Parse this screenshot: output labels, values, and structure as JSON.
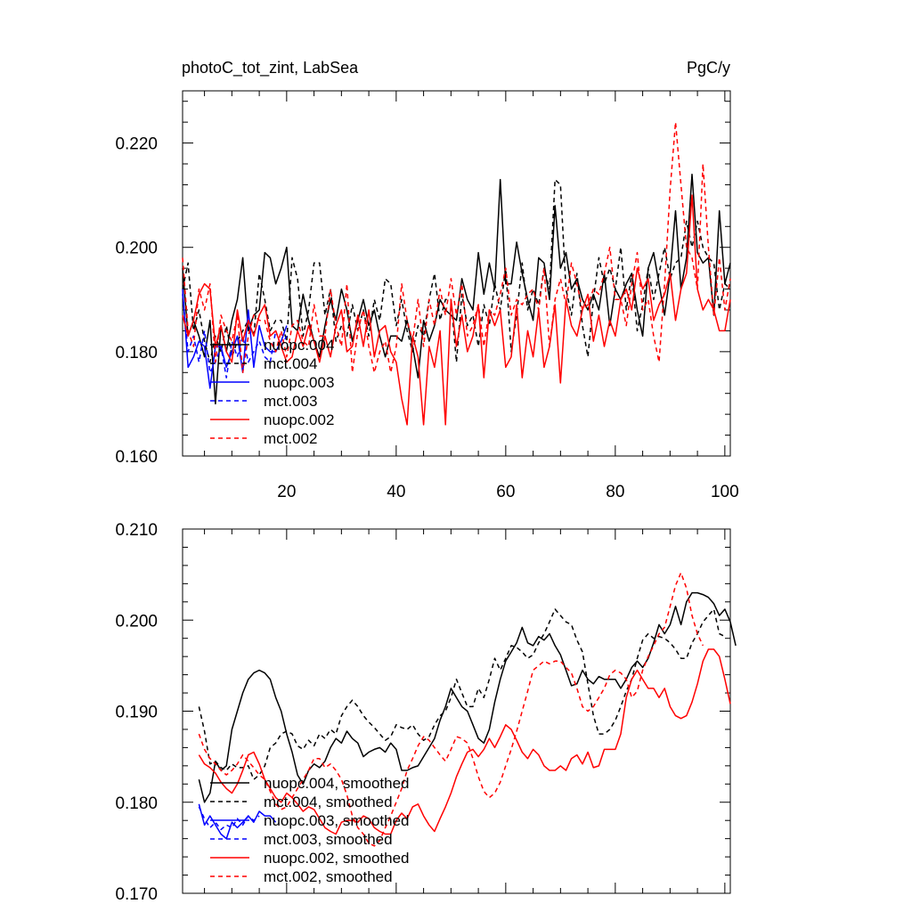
{
  "header": {
    "title": "photoC_tot_zint, LabSea",
    "units": "PgC/y"
  },
  "chart_data": [
    {
      "type": "line",
      "title": "photoC_tot_zint, LabSea",
      "units": "PgC/y",
      "xlabel": "",
      "ylabel": "",
      "xlim": [
        1,
        101
      ],
      "ylim": [
        0.16,
        0.23
      ],
      "xticks": [
        20,
        40,
        60,
        80,
        100
      ],
      "xtick_labels": [
        "20",
        "40",
        "60",
        "80",
        "100"
      ],
      "yticks": [
        0.16,
        0.18,
        0.2,
        0.22
      ],
      "ytick_labels": [
        "0.160",
        "0.180",
        "0.200",
        "0.220"
      ],
      "legend_position": "bottom-left",
      "series": [
        {
          "name": "nuopc.004",
          "color": "#000000",
          "dash": "solid",
          "x_start": 1,
          "values": [
            0.196,
            0.183,
            0.186,
            0.183,
            0.179,
            0.186,
            0.17,
            0.185,
            0.18,
            0.186,
            0.19,
            0.198,
            0.184,
            0.187,
            0.188,
            0.199,
            0.198,
            0.193,
            0.196,
            0.2,
            0.185,
            0.184,
            0.191,
            0.186,
            0.182,
            0.179,
            0.185,
            0.19,
            0.186,
            0.192,
            0.188,
            0.182,
            0.186,
            0.19,
            0.185,
            0.188,
            0.183,
            0.179,
            0.183,
            0.183,
            0.182,
            0.186,
            0.181,
            0.175,
            0.186,
            0.182,
            0.185,
            0.19,
            0.188,
            0.187,
            0.186,
            0.194,
            0.19,
            0.188,
            0.199,
            0.191,
            0.197,
            0.192,
            0.213,
            0.193,
            0.193,
            0.201,
            0.195,
            0.19,
            0.186,
            0.198,
            0.197,
            0.19,
            0.208,
            0.196,
            0.199,
            0.192,
            0.194,
            0.19,
            0.188,
            0.191,
            0.188,
            0.195,
            0.185,
            0.192,
            0.19,
            0.193,
            0.195,
            0.188,
            0.183,
            0.196,
            0.199,
            0.193,
            0.187,
            0.195,
            0.207,
            0.192,
            0.198,
            0.214,
            0.199,
            0.197,
            0.198,
            0.187,
            0.207,
            0.193,
            0.197
          ]
        },
        {
          "name": "mct.004",
          "color": "#000000",
          "dash": "dashed",
          "x_start": 1,
          "values": [
            0.192,
            0.197,
            0.184,
            0.188,
            0.182,
            0.178,
            0.183,
            0.18,
            0.185,
            0.179,
            0.182,
            0.184,
            0.186,
            0.183,
            0.195,
            0.19,
            0.184,
            0.186,
            0.186,
            0.182,
            0.198,
            0.194,
            0.183,
            0.188,
            0.197,
            0.197,
            0.187,
            0.192,
            0.182,
            0.185,
            0.183,
            0.189,
            0.184,
            0.188,
            0.183,
            0.19,
            0.186,
            0.194,
            0.193,
            0.185,
            0.19,
            0.184,
            0.18,
            0.185,
            0.183,
            0.19,
            0.195,
            0.186,
            0.19,
            0.19,
            0.178,
            0.191,
            0.185,
            0.187,
            0.181,
            0.189,
            0.185,
            0.193,
            0.188,
            0.196,
            0.18,
            0.187,
            0.197,
            0.188,
            0.192,
            0.189,
            0.196,
            0.192,
            0.213,
            0.212,
            0.192,
            0.187,
            0.195,
            0.185,
            0.179,
            0.19,
            0.198,
            0.193,
            0.196,
            0.192,
            0.2,
            0.188,
            0.195,
            0.184,
            0.189,
            0.196,
            0.19,
            0.195,
            0.2,
            0.194,
            0.197,
            0.198,
            0.205,
            0.2,
            0.205,
            0.2,
            0.198,
            0.197,
            0.188,
            0.193,
            0.192
          ]
        },
        {
          "name": "nuopc.003",
          "color": "#0000ff",
          "dash": "solid",
          "x_start": 1,
          "values": [
            0.192,
            0.177,
            0.179,
            0.182,
            0.181,
            0.173,
            0.181,
            0.181,
            0.177,
            0.18,
            0.183,
            0.176,
            0.188,
            0.177,
            0.185,
            0.181,
            0.18,
            0.18,
            0.182,
            0.185
          ]
        },
        {
          "name": "mct.003",
          "color": "#0000ff",
          "dash": "dashed",
          "x_start": 1,
          "values": [
            0.191,
            0.18,
            0.183,
            0.178,
            0.184,
            0.176,
            0.178,
            0.181,
            0.175,
            0.182,
            0.179,
            0.183,
            0.178,
            0.18,
            0.182,
            0.179,
            0.178,
            0.184,
            0.181,
            0.183
          ]
        },
        {
          "name": "nuopc.002",
          "color": "#ff0000",
          "dash": "solid",
          "x_start": 1,
          "values": [
            0.187,
            0.183,
            0.186,
            0.191,
            0.193,
            0.192,
            0.181,
            0.185,
            0.18,
            0.178,
            0.188,
            0.182,
            0.186,
            0.183,
            0.187,
            0.189,
            0.183,
            0.184,
            0.181,
            0.178,
            0.179,
            0.184,
            0.181,
            0.185,
            0.182,
            0.178,
            0.183,
            0.179,
            0.185,
            0.188,
            0.18,
            0.181,
            0.187,
            0.181,
            0.188,
            0.179,
            0.184,
            0.185,
            0.18,
            0.178,
            0.171,
            0.166,
            0.183,
            0.179,
            0.166,
            0.181,
            0.177,
            0.184,
            0.166,
            0.19,
            0.181,
            0.187,
            0.18,
            0.183,
            0.189,
            0.175,
            0.188,
            0.185,
            0.188,
            0.177,
            0.179,
            0.189,
            0.175,
            0.184,
            0.179,
            0.188,
            0.177,
            0.181,
            0.189,
            0.174,
            0.19,
            0.185,
            0.183,
            0.188,
            0.191,
            0.182,
            0.187,
            0.181,
            0.186,
            0.183,
            0.19,
            0.192,
            0.188,
            0.196,
            0.192,
            0.194,
            0.186,
            0.189,
            0.191,
            0.195,
            0.186,
            0.192,
            0.195,
            0.21,
            0.192,
            0.188,
            0.19,
            0.188,
            0.184,
            0.184,
            0.19
          ]
        },
        {
          "name": "mct.002",
          "color": "#ff0000",
          "dash": "dashed",
          "x_start": 1,
          "values": [
            0.198,
            0.184,
            0.181,
            0.192,
            0.188,
            0.193,
            0.178,
            0.187,
            0.184,
            0.182,
            0.187,
            0.176,
            0.183,
            0.187,
            0.186,
            0.186,
            0.182,
            0.18,
            0.184,
            0.179,
            0.185,
            0.186,
            0.182,
            0.181,
            0.189,
            0.183,
            0.183,
            0.192,
            0.185,
            0.181,
            0.193,
            0.176,
            0.184,
            0.188,
            0.181,
            0.176,
            0.18,
            0.182,
            0.176,
            0.181,
            0.193,
            0.186,
            0.182,
            0.19,
            0.181,
            0.19,
            0.185,
            0.192,
            0.187,
            0.194,
            0.187,
            0.193,
            0.183,
            0.185,
            0.189,
            0.181,
            0.188,
            0.187,
            0.191,
            0.196,
            0.187,
            0.19,
            0.189,
            0.191,
            0.192,
            0.188,
            0.196,
            0.181,
            0.19,
            0.194,
            0.189,
            0.197,
            0.193,
            0.188,
            0.189,
            0.192,
            0.191,
            0.195,
            0.2,
            0.19,
            0.19,
            0.185,
            0.193,
            0.199,
            0.188,
            0.19,
            0.183,
            0.178,
            0.193,
            0.211,
            0.224,
            0.212,
            0.2,
            0.198,
            0.192,
            0.216,
            0.2,
            0.187,
            0.198,
            0.188,
            0.194
          ]
        }
      ]
    },
    {
      "type": "line",
      "title": "",
      "xlabel": "",
      "ylabel": "",
      "xlim": [
        1,
        101
      ],
      "ylim": [
        0.17,
        0.21
      ],
      "xticks": [
        20,
        40,
        60,
        80,
        100
      ],
      "xtick_labels": [],
      "yticks": [
        0.17,
        0.18,
        0.19,
        0.2,
        0.21
      ],
      "ytick_labels": [
        "0.170",
        "0.180",
        "0.190",
        "0.200",
        "0.210"
      ],
      "legend_position": "bottom-left",
      "series": [
        {
          "name": "nuopc.004, smoothed",
          "color": "#000000",
          "dash": "solid",
          "x_start": 4,
          "values": [
            0.1825,
            0.18,
            0.181,
            0.1845,
            0.1835,
            0.184,
            0.188,
            0.19,
            0.192,
            0.1935,
            0.1942,
            0.1945,
            0.1942,
            0.1935,
            0.1915,
            0.19,
            0.1875,
            0.1855,
            0.183,
            0.182,
            0.1835,
            0.1842,
            0.1838,
            0.1845,
            0.186,
            0.187,
            0.1865,
            0.1878,
            0.187,
            0.1865,
            0.185,
            0.1855,
            0.1858,
            0.186,
            0.1855,
            0.1865,
            0.1858,
            0.1835,
            0.1835,
            0.1838,
            0.184,
            0.185,
            0.186,
            0.187,
            0.189,
            0.1905,
            0.1925,
            0.1915,
            0.1905,
            0.19,
            0.1885,
            0.187,
            0.1865,
            0.188,
            0.191,
            0.1935,
            0.1955,
            0.1965,
            0.1975,
            0.1992,
            0.1975,
            0.1972,
            0.1982,
            0.1978,
            0.1985,
            0.1972,
            0.1962,
            0.1945,
            0.1928,
            0.193,
            0.1945,
            0.1935,
            0.193,
            0.1938,
            0.1935,
            0.1935,
            0.1935,
            0.1925,
            0.1935,
            0.1948,
            0.1955,
            0.1948,
            0.1958,
            0.1975,
            0.1995,
            0.1985,
            0.1995,
            0.2015,
            0.1995,
            0.202,
            0.203,
            0.203,
            0.2028,
            0.2025,
            0.2018,
            0.2005,
            0.2012,
            0.1998,
            0.1972
          ]
        },
        {
          "name": "mct.004, smoothed",
          "color": "#000000",
          "dash": "dashed",
          "x_start": 4,
          "values": [
            0.1905,
            0.1878,
            0.1842,
            0.1845,
            0.1838,
            0.1835,
            0.1842,
            0.1838,
            0.1838,
            0.184,
            0.1825,
            0.183,
            0.184,
            0.186,
            0.1865,
            0.1875,
            0.1878,
            0.1875,
            0.1862,
            0.1858,
            0.1868,
            0.1862,
            0.1875,
            0.187,
            0.188,
            0.1875,
            0.1895,
            0.1905,
            0.1912,
            0.1905,
            0.1895,
            0.1888,
            0.1882,
            0.1875,
            0.1868,
            0.1872,
            0.1885,
            0.1882,
            0.188,
            0.1885,
            0.1875,
            0.1868,
            0.1872,
            0.1885,
            0.1895,
            0.19,
            0.1915,
            0.1935,
            0.192,
            0.1905,
            0.1905,
            0.1925,
            0.1915,
            0.1935,
            0.1958,
            0.1945,
            0.1958,
            0.1972,
            0.197,
            0.1965,
            0.1958,
            0.1962,
            0.1975,
            0.1985,
            0.1998,
            0.2012,
            0.2005,
            0.1998,
            0.1995,
            0.1978,
            0.1965,
            0.193,
            0.1895,
            0.1875,
            0.1875,
            0.188,
            0.189,
            0.1905,
            0.1922,
            0.1935,
            0.1958,
            0.1978,
            0.1985,
            0.198,
            0.1982,
            0.198,
            0.1975,
            0.1968,
            0.1958,
            0.1958,
            0.1975,
            0.1985,
            0.1998,
            0.2005,
            0.2012,
            0.1985,
            0.1982
          ]
        },
        {
          "name": "nuopc.003, smoothed",
          "color": "#0000ff",
          "dash": "solid",
          "x_start": 4,
          "values": [
            0.1798,
            0.1775,
            0.1785,
            0.1775,
            0.1765,
            0.176,
            0.1778,
            0.1772,
            0.1778,
            0.1785,
            0.1778,
            0.179,
            0.1785,
            0.1785,
            0.1778
          ]
        },
        {
          "name": "mct.003, smoothed",
          "color": "#0000ff",
          "dash": "dashed",
          "x_start": 4,
          "values": [
            0.1795,
            0.1782,
            0.1772,
            0.1778,
            0.177,
            0.1775,
            0.1772,
            0.1782,
            0.1775,
            0.1785,
            0.178,
            0.1785
          ]
        },
        {
          "name": "nuopc.002, smoothed",
          "color": "#ff0000",
          "dash": "solid",
          "x_start": 4,
          "values": [
            0.1852,
            0.1842,
            0.1838,
            0.1832,
            0.1822,
            0.1815,
            0.181,
            0.182,
            0.1835,
            0.1852,
            0.1855,
            0.1842,
            0.1825,
            0.1815,
            0.1805,
            0.18,
            0.181,
            0.1805,
            0.1798,
            0.179,
            0.1795,
            0.1792,
            0.1782,
            0.1772,
            0.1768,
            0.1765,
            0.1778,
            0.178,
            0.178,
            0.1778,
            0.1785,
            0.1782,
            0.1772,
            0.1768,
            0.1765,
            0.1765,
            0.178,
            0.1788,
            0.1782,
            0.1795,
            0.1798,
            0.1785,
            0.1775,
            0.1768,
            0.1782,
            0.1795,
            0.181,
            0.1828,
            0.1842,
            0.1855,
            0.1858,
            0.185,
            0.1858,
            0.187,
            0.186,
            0.1872,
            0.1885,
            0.188,
            0.1868,
            0.1855,
            0.1848,
            0.1858,
            0.1852,
            0.184,
            0.1835,
            0.1835,
            0.184,
            0.1835,
            0.1848,
            0.1852,
            0.1842,
            0.1855,
            0.1838,
            0.184,
            0.1858,
            0.1858,
            0.1858,
            0.1875,
            0.1915,
            0.1935,
            0.1945,
            0.1935,
            0.1925,
            0.1925,
            0.1915,
            0.1925,
            0.1905,
            0.1895,
            0.1892,
            0.1895,
            0.191,
            0.193,
            0.1955,
            0.1968,
            0.1968,
            0.196,
            0.1935,
            0.1908
          ]
        },
        {
          "name": "mct.002, smoothed",
          "color": "#ff0000",
          "dash": "dashed",
          "x_start": 4,
          "values": [
            0.1875,
            0.1858,
            0.1848,
            0.1842,
            0.1835,
            0.183,
            0.1835,
            0.1842,
            0.1852,
            0.1845,
            0.1838,
            0.183,
            0.1825,
            0.1812,
            0.1798,
            0.1792,
            0.1795,
            0.1805,
            0.1815,
            0.1825,
            0.1835,
            0.1848,
            0.1848,
            0.1838,
            0.1842,
            0.1835,
            0.1825,
            0.1808,
            0.1785,
            0.1772,
            0.1765,
            0.1755,
            0.1752,
            0.1758,
            0.1772,
            0.1785,
            0.18,
            0.1815,
            0.1835,
            0.1848,
            0.1862,
            0.1872,
            0.1868,
            0.186,
            0.1852,
            0.1845,
            0.1858,
            0.1872,
            0.187,
            0.1865,
            0.1848,
            0.1828,
            0.1812,
            0.1805,
            0.181,
            0.1822,
            0.184,
            0.1858,
            0.1878,
            0.19,
            0.1922,
            0.1945,
            0.195,
            0.1955,
            0.1952,
            0.1955,
            0.1955,
            0.1948,
            0.1942,
            0.1925,
            0.1905,
            0.19,
            0.1905,
            0.1915,
            0.1925,
            0.194,
            0.1945,
            0.1942,
            0.1935,
            0.1915,
            0.1922,
            0.1945,
            0.196,
            0.1972,
            0.1985,
            0.1992,
            0.2015,
            0.2038,
            0.2052,
            0.2035,
            0.2005,
            0.1985,
            0.1972
          ]
        }
      ]
    }
  ]
}
